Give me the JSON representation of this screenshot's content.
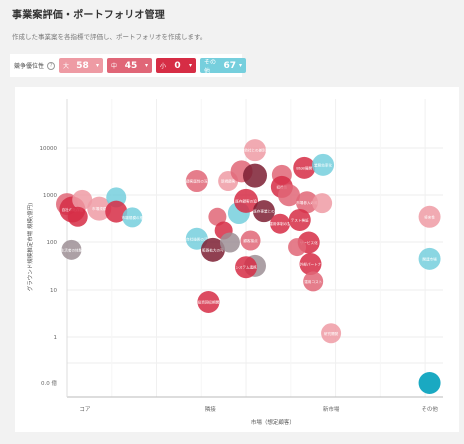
{
  "page": {
    "title": "事業案評価・ポートフォリオ管理",
    "description": "作成した事業案を各指標で評価し、ポートフォリオを作成します。"
  },
  "filters": {
    "label": "競争優位性",
    "help_icon": "question-circle-icon",
    "chips": [
      {
        "key": "large",
        "label": "大",
        "count": "58",
        "color": "#ee9ba4",
        "icon": "filter-icon"
      },
      {
        "key": "medium",
        "label": "中",
        "count": "45",
        "color": "#e06677",
        "icon": "filter-icon"
      },
      {
        "key": "small",
        "label": "小",
        "count": "0",
        "color": "#d62d45",
        "icon": "filter-icon"
      },
      {
        "key": "other",
        "label": "その他",
        "count": "67",
        "color": "#76cfdd",
        "icon": "filter-icon"
      }
    ]
  },
  "colors": {
    "large": "#ee9ba4",
    "medium": "#e06677",
    "small": "#d62d45",
    "dark": "#7d1f33",
    "gray": "#9e8f95",
    "other": "#76cfdd",
    "teal": "#1aa9c2"
  },
  "chart_data": {
    "type": "scatter",
    "xlabel": "市場（想定顧客）",
    "ylabel": "グラウンド規模推定市場 規模(億円)",
    "x_categories": [
      "コア",
      "隣接",
      "新市場",
      "その他"
    ],
    "x_range": [
      0,
      4.2
    ],
    "y_ticks": [
      "10000",
      "1000",
      "100",
      "10",
      "1",
      "0.0 億"
    ],
    "y_scale": "log",
    "grid": true,
    "points": [
      {
        "x": 0.0,
        "y": 650,
        "size": 11,
        "cat": "medium",
        "label": ""
      },
      {
        "x": 0.06,
        "y": 500,
        "size": 13,
        "cat": "small",
        "label": "自社の既存技術を活用"
      },
      {
        "x": 0.17,
        "y": 800,
        "size": 10,
        "cat": "large",
        "label": ""
      },
      {
        "x": 0.12,
        "y": 350,
        "size": 10,
        "cat": "small",
        "label": ""
      },
      {
        "x": 0.05,
        "y": 70,
        "size": 10,
        "cat": "gray",
        "label": "生活者の体験価値"
      },
      {
        "x": 0.36,
        "y": 520,
        "size": 12,
        "cat": "large",
        "label": "市場規模"
      },
      {
        "x": 0.55,
        "y": 900,
        "size": 10,
        "cat": "other",
        "label": ""
      },
      {
        "x": 0.55,
        "y": 450,
        "size": 11,
        "cat": "small",
        "label": ""
      },
      {
        "x": 0.73,
        "y": 340,
        "size": 10,
        "cat": "other",
        "label": "市場規模の推定値"
      },
      {
        "x": 1.45,
        "y": 2000,
        "size": 11,
        "cat": "medium",
        "label": "顧客属性の深堀り"
      },
      {
        "x": 1.45,
        "y": 120,
        "size": 11,
        "cat": "other",
        "label": "自社技術の活用余地"
      },
      {
        "x": 1.8,
        "y": 2000,
        "size": 10,
        "cat": "large",
        "label": "新規顧客"
      },
      {
        "x": 1.92,
        "y": 420,
        "size": 11,
        "cat": "other",
        "label": ""
      },
      {
        "x": 2.1,
        "y": 9000,
        "size": 11,
        "cat": "large",
        "label": "他社との差別化"
      },
      {
        "x": 1.95,
        "y": 3200,
        "size": 11,
        "cat": "medium",
        "label": ""
      },
      {
        "x": 2.1,
        "y": 2600,
        "size": 12,
        "cat": "dark",
        "label": ""
      },
      {
        "x": 2.0,
        "y": 760,
        "size": 12,
        "cat": "small",
        "label": "既存顧客の追加需要"
      },
      {
        "x": 2.2,
        "y": 460,
        "size": 11,
        "cat": "dark",
        "label": "既存事業との相乗効果"
      },
      {
        "x": 1.68,
        "y": 350,
        "size": 9,
        "cat": "medium",
        "label": ""
      },
      {
        "x": 1.75,
        "y": 180,
        "size": 9,
        "cat": "small",
        "label": ""
      },
      {
        "x": 1.63,
        "y": 70,
        "size": 12,
        "cat": "dark",
        "label": "販路拡大の可能性"
      },
      {
        "x": 1.82,
        "y": 100,
        "size": 10,
        "cat": "gray",
        "label": ""
      },
      {
        "x": 2.05,
        "y": 110,
        "size": 10,
        "cat": "medium",
        "label": "顧客接点"
      },
      {
        "x": 2.1,
        "y": 32,
        "size": 11,
        "cat": "gray",
        "label": ""
      },
      {
        "x": 2.0,
        "y": 30,
        "size": 11,
        "cat": "small",
        "label": "システム連携の要件"
      },
      {
        "x": 2.4,
        "y": 2700,
        "size": 10,
        "cat": "medium",
        "label": ""
      },
      {
        "x": 2.4,
        "y": 1500,
        "size": 11,
        "cat": "small",
        "label": "収益性"
      },
      {
        "x": 2.48,
        "y": 1000,
        "size": 11,
        "cat": "medium",
        "label": ""
      },
      {
        "x": 2.38,
        "y": 250,
        "size": 10,
        "cat": "small",
        "label": "運用体制の整備"
      },
      {
        "x": 2.65,
        "y": 3800,
        "size": 11,
        "cat": "small",
        "label": "BtoB展開"
      },
      {
        "x": 2.86,
        "y": 4400,
        "size": 11,
        "cat": "other",
        "label": "業務効率化"
      },
      {
        "x": 2.68,
        "y": 710,
        "size": 11,
        "cat": "medium",
        "label": "市場参入の難易度"
      },
      {
        "x": 2.85,
        "y": 680,
        "size": 10,
        "cat": "large",
        "label": ""
      },
      {
        "x": 2.6,
        "y": 300,
        "size": 11,
        "cat": "small",
        "label": "テスト検証"
      },
      {
        "x": 2.7,
        "y": 100,
        "size": 11,
        "cat": "small",
        "label": "サービス化"
      },
      {
        "x": 2.57,
        "y": 80,
        "size": 9,
        "cat": "medium",
        "label": ""
      },
      {
        "x": 2.72,
        "y": 35,
        "size": 11,
        "cat": "small",
        "label": "外部パートナー"
      },
      {
        "x": 2.75,
        "y": 15,
        "size": 10,
        "cat": "medium",
        "label": "運用コスト"
      },
      {
        "x": 1.58,
        "y": 5.5,
        "size": 11,
        "cat": "small",
        "label": "投資回収期間"
      },
      {
        "x": 2.95,
        "y": 1.2,
        "size": 10,
        "cat": "large",
        "label": "研究開発"
      },
      {
        "x": 4.05,
        "y": 350,
        "size": 11,
        "cat": "large",
        "label": "将来性"
      },
      {
        "x": 4.05,
        "y": 45,
        "size": 11,
        "cat": "other",
        "label": "関連市場"
      },
      {
        "x": 4.05,
        "y": 0.1,
        "size": 11,
        "cat": "teal",
        "label": ""
      }
    ]
  }
}
